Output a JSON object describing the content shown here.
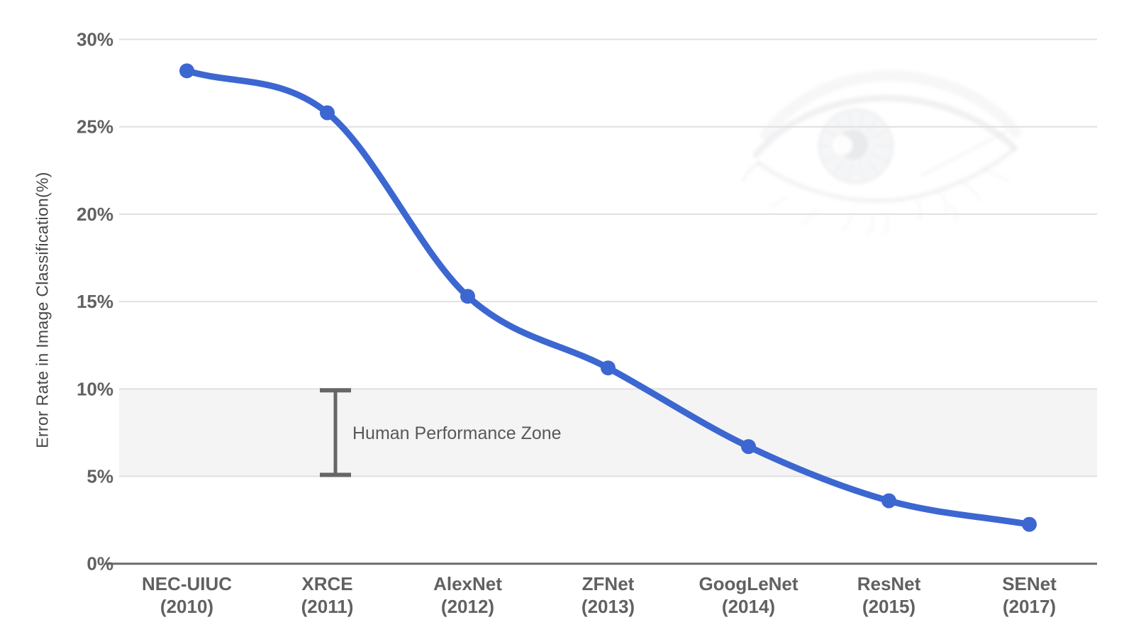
{
  "chart_data": {
    "type": "line",
    "title": "",
    "ylabel": "Error Rate in Image Classification(%)",
    "xlabel": "",
    "categories": [
      "NEC-UIUC",
      "XRCE",
      "AlexNet",
      "ZFNet",
      "GoogLeNet",
      "ResNet",
      "SENet"
    ],
    "category_years": [
      "(2010)",
      "(2011)",
      "(2012)",
      "(2013)",
      "(2014)",
      "(2015)",
      "(2017)"
    ],
    "series": [
      {
        "name": "Error Rate in Image Classification(%)",
        "values": [
          28.2,
          25.8,
          15.3,
          11.2,
          6.7,
          3.6,
          2.25
        ]
      }
    ],
    "ylim": [
      0,
      30
    ],
    "yticks": [
      {
        "value": 30,
        "label": "30%"
      },
      {
        "value": 25,
        "label": "25%"
      },
      {
        "value": 20,
        "label": "20%"
      },
      {
        "value": 15,
        "label": "15%"
      },
      {
        "value": 10,
        "label": "10%"
      },
      {
        "value": 5,
        "label": "5%"
      },
      {
        "value": 0,
        "label": "0%"
      }
    ],
    "grid": true,
    "legend_position": "none",
    "band": {
      "from": 5,
      "to": 10,
      "label": "Human Performance Zone",
      "color": "#f4f4f4"
    },
    "annotations": {
      "errorbar": {
        "from": 5,
        "to": 10
      }
    },
    "watermark_icon": "eye-image",
    "colors": {
      "line": "#3c67d1",
      "grid": "#e0e0e0",
      "axis": "#6b6b6b",
      "tick_text": "#616161",
      "annotation_text": "#585858",
      "errorbar": "#666666",
      "band_fill": "#f4f4f4",
      "watermark_gray": "#c9ccd1"
    }
  }
}
